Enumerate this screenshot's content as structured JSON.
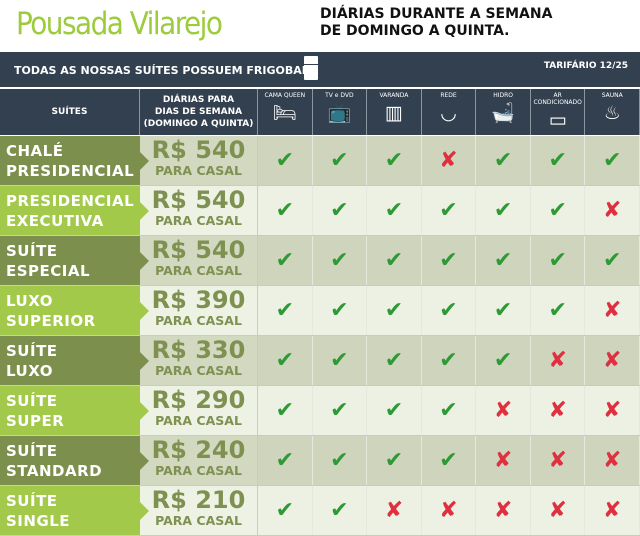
{
  "brand": "Pousada Vilarejo",
  "headline": [
    "DIÁRIAS DURANTE A SEMANA",
    "DE DOMINGO A QUINTA."
  ],
  "banner": {
    "text": "TODAS AS NOSSAS SUÍTES POSSUEM FRIGOBAR",
    "tariff": "TARIFÁRIO 12/25"
  },
  "header": {
    "suites": "SUÍTES",
    "price": [
      "DIÁRIAS PARA",
      "DIAS DE SEMANA",
      "(DOMINGO A QUINTA)"
    ],
    "amenities": [
      {
        "label": "CAMA QUEEN",
        "icon": "bed-icon",
        "glyph": "🛏"
      },
      {
        "label": "TV e DVD",
        "icon": "tv-icon",
        "glyph": "📺"
      },
      {
        "label": "VARANDA",
        "icon": "balcony-icon",
        "glyph": "▥"
      },
      {
        "label": "REDE",
        "icon": "hammock-icon",
        "glyph": "◡"
      },
      {
        "label": "HIDRO",
        "icon": "bathtub-icon",
        "glyph": "🛁"
      },
      {
        "label": "AR CONDICIONADO",
        "icon": "air-conditioner-icon",
        "glyph": "▭"
      },
      {
        "label": "SAUNA",
        "icon": "sauna-icon",
        "glyph": "♨"
      }
    ]
  },
  "colors": {
    "check": "#2e9a35",
    "cross": "#e03040"
  },
  "rows": [
    {
      "name": [
        "CHALÉ",
        "PRESIDENCIAL"
      ],
      "price": "R$ 540",
      "per": "PARA CASAL",
      "a": [
        1,
        1,
        1,
        0,
        1,
        1,
        1
      ]
    },
    {
      "name": [
        "PRESIDENCIAL",
        "EXECUTIVA"
      ],
      "price": "R$ 540",
      "per": "PARA CASAL",
      "a": [
        1,
        1,
        1,
        1,
        1,
        1,
        0
      ]
    },
    {
      "name": [
        "SUÍTE",
        "ESPECIAL"
      ],
      "price": "R$ 540",
      "per": "PARA CASAL",
      "a": [
        1,
        1,
        1,
        1,
        1,
        1,
        1
      ]
    },
    {
      "name": [
        "LUXO",
        "SUPERIOR"
      ],
      "price": "R$ 390",
      "per": "PARA CASAL",
      "a": [
        1,
        1,
        1,
        1,
        1,
        1,
        0
      ]
    },
    {
      "name": [
        "SUÍTE",
        "LUXO"
      ],
      "price": "R$ 330",
      "per": "PARA CASAL",
      "a": [
        1,
        1,
        1,
        1,
        1,
        0,
        0
      ]
    },
    {
      "name": [
        "SUÍTE",
        "SUPER"
      ],
      "price": "R$ 290",
      "per": "PARA CASAL",
      "a": [
        1,
        1,
        1,
        1,
        0,
        0,
        0
      ]
    },
    {
      "name": [
        "SUÍTE",
        "STANDARD"
      ],
      "price": "R$ 240",
      "per": "PARA CASAL",
      "a": [
        1,
        1,
        1,
        1,
        0,
        0,
        0
      ]
    },
    {
      "name": [
        "SUÍTE",
        "SINGLE"
      ],
      "price": "R$ 210",
      "per": "PARA CASAL",
      "a": [
        1,
        1,
        0,
        0,
        0,
        0,
        0
      ]
    }
  ]
}
